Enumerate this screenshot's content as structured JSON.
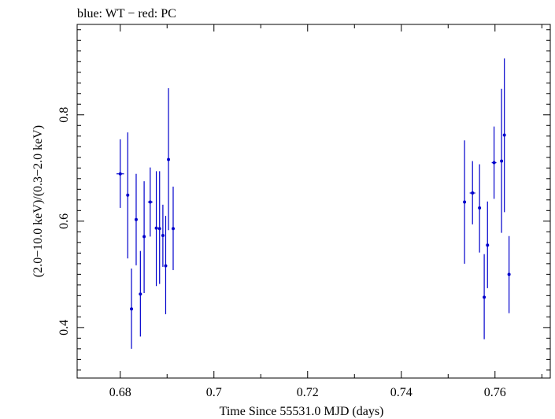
{
  "chart_data": {
    "type": "scatter",
    "title": "blue: WT − red: PC",
    "xlabel": "Time Since 55531.0 MJD (days)",
    "ylabel": "(2.0−10.0 keV)/(0.3−2.0 keV)",
    "xlim": [
      0.6708,
      0.7718
    ],
    "ylim": [
      0.305,
      0.97
    ],
    "x_ticks": [
      0.68,
      0.7,
      0.72,
      0.74,
      0.76
    ],
    "x_tick_labels": [
      "0.68",
      "0.7",
      "0.72",
      "0.74",
      "0.76"
    ],
    "y_ticks": [
      0.4,
      0.6,
      0.8
    ],
    "y_tick_labels": [
      "0.4",
      "0.6",
      "0.8"
    ],
    "grid": false,
    "series": [
      {
        "color": "#0000cc",
        "points": [
          {
            "x": 0.68,
            "xerr": 0.0008,
            "y": 0.689,
            "ylo": 0.625,
            "yhi": 0.754
          },
          {
            "x": 0.6816,
            "xerr": 0.0002,
            "y": 0.649,
            "ylo": 0.53,
            "yhi": 0.767
          },
          {
            "x": 0.6824,
            "xerr": 0.0002,
            "y": 0.435,
            "ylo": 0.36,
            "yhi": 0.511
          },
          {
            "x": 0.6834,
            "xerr": 0.0002,
            "y": 0.603,
            "ylo": 0.517,
            "yhi": 0.689
          },
          {
            "x": 0.6843,
            "xerr": 0.0002,
            "y": 0.463,
            "ylo": 0.383,
            "yhi": 0.544
          },
          {
            "x": 0.6851,
            "xerr": 0.0002,
            "y": 0.571,
            "ylo": 0.465,
            "yhi": 0.675
          },
          {
            "x": 0.6864,
            "xerr": 0.0005,
            "y": 0.636,
            "ylo": 0.571,
            "yhi": 0.701
          },
          {
            "x": 0.6877,
            "xerr": 0.0002,
            "y": 0.587,
            "ylo": 0.478,
            "yhi": 0.694
          },
          {
            "x": 0.6884,
            "xerr": 0.0002,
            "y": 0.586,
            "ylo": 0.482,
            "yhi": 0.694
          },
          {
            "x": 0.6891,
            "xerr": 0.0002,
            "y": 0.573,
            "ylo": 0.514,
            "yhi": 0.631
          },
          {
            "x": 0.6897,
            "xerr": 0.0002,
            "y": 0.516,
            "ylo": 0.425,
            "yhi": 0.61
          },
          {
            "x": 0.6903,
            "xerr": 0.0002,
            "y": 0.716,
            "ylo": 0.583,
            "yhi": 0.85
          },
          {
            "x": 0.6913,
            "xerr": 0.0003,
            "y": 0.586,
            "ylo": 0.508,
            "yhi": 0.665
          },
          {
            "x": 0.7535,
            "xerr": 0.0002,
            "y": 0.636,
            "ylo": 0.52,
            "yhi": 0.752
          },
          {
            "x": 0.7552,
            "xerr": 0.0006,
            "y": 0.653,
            "ylo": 0.594,
            "yhi": 0.713
          },
          {
            "x": 0.7567,
            "xerr": 0.0003,
            "y": 0.625,
            "ylo": 0.541,
            "yhi": 0.707
          },
          {
            "x": 0.7577,
            "xerr": 0.0002,
            "y": 0.457,
            "ylo": 0.378,
            "yhi": 0.538
          },
          {
            "x": 0.7584,
            "xerr": 0.0002,
            "y": 0.555,
            "ylo": 0.474,
            "yhi": 0.637
          },
          {
            "x": 0.7598,
            "xerr": 0.0005,
            "y": 0.71,
            "ylo": 0.642,
            "yhi": 0.778
          },
          {
            "x": 0.7614,
            "xerr": 0.0002,
            "y": 0.713,
            "ylo": 0.578,
            "yhi": 0.849
          },
          {
            "x": 0.762,
            "xerr": 0.0002,
            "y": 0.762,
            "ylo": 0.617,
            "yhi": 0.906
          },
          {
            "x": 0.763,
            "xerr": 0.0003,
            "y": 0.5,
            "ylo": 0.427,
            "yhi": 0.572
          }
        ]
      }
    ]
  }
}
